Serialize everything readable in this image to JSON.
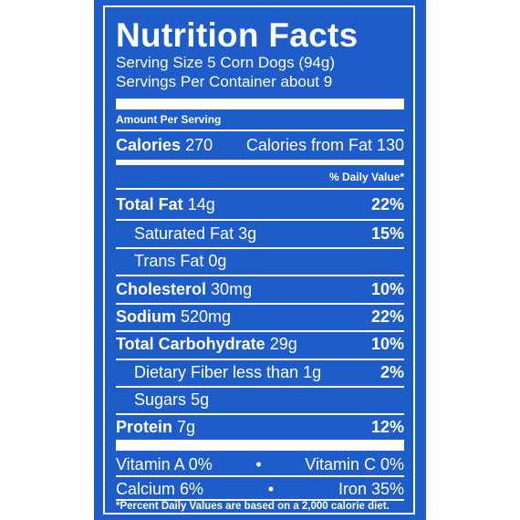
{
  "label": {
    "title": "Nutrition Facts",
    "serving_size": "Serving Size 5 Corn Dogs (94g)",
    "servings_per_container": "Servings Per Container about 9",
    "amount_per_serving": "Amount Per Serving",
    "calories_label": "Calories",
    "calories_value": "270",
    "calories_from_fat": "Calories from Fat 130",
    "daily_value_header": "% Daily Value*",
    "nutrients": [
      {
        "name": "Total Fat",
        "amount": "14g",
        "dv": "22%"
      },
      {
        "name": "Saturated Fat",
        "amount": "3g",
        "dv": "15%"
      },
      {
        "name": "Trans Fat",
        "amount": "0g",
        "dv": ""
      },
      {
        "name": "Cholesterol",
        "amount": "30mg",
        "dv": "10%"
      },
      {
        "name": "Sodium",
        "amount": "520mg",
        "dv": "22%"
      },
      {
        "name": "Total Carbohydrate",
        "amount": "29g",
        "dv": "10%"
      },
      {
        "name": "Dietary Fiber",
        "amount": "less than 1g",
        "dv": "2%"
      },
      {
        "name": "Sugars",
        "amount": "5g",
        "dv": ""
      },
      {
        "name": "Protein",
        "amount": "7g",
        "dv": "12%"
      }
    ],
    "vitamins": [
      {
        "left": "Vitamin A 0%",
        "right": "Vitamin C 0%"
      },
      {
        "left": "Calcium 6%",
        "right": "Iron 35%"
      }
    ],
    "separator": "•",
    "footnote": "*Percent Daily Values are based on a 2,000 calorie diet."
  },
  "colors": {
    "background": "#1d5cc9",
    "text": "#ffffff"
  }
}
